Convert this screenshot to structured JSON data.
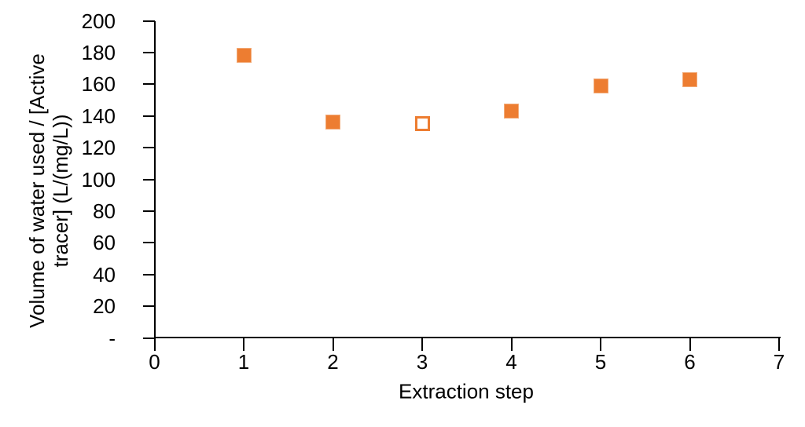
{
  "chart_data": {
    "type": "scatter",
    "title": "",
    "xlabel": "Extraction step",
    "ylabel": "Volume of water used / [Active tracer] (L/(mg/L))",
    "ylabel_lines": [
      "Volume of water used / [Active",
      "tracer] (L/(mg/L))"
    ],
    "xlim": [
      0,
      7
    ],
    "ylim": [
      0,
      200
    ],
    "grid": false,
    "legend": false,
    "axis_color": "#000000",
    "text_color": "#000000",
    "marker": {
      "shape": "square",
      "size": 19,
      "color": "#ED7D31",
      "open_fill": "#FFFFFF"
    },
    "x_ticks": [
      {
        "value": 0,
        "label": "0"
      },
      {
        "value": 1,
        "label": "1"
      },
      {
        "value": 2,
        "label": "2"
      },
      {
        "value": 3,
        "label": "3"
      },
      {
        "value": 4,
        "label": "4"
      },
      {
        "value": 5,
        "label": "5"
      },
      {
        "value": 6,
        "label": "6"
      },
      {
        "value": 7,
        "label": "7"
      }
    ],
    "y_ticks": [
      {
        "value": 0,
        "label": "-"
      },
      {
        "value": 20,
        "label": "20"
      },
      {
        "value": 40,
        "label": "40"
      },
      {
        "value": 60,
        "label": "60"
      },
      {
        "value": 80,
        "label": "80"
      },
      {
        "value": 100,
        "label": "100"
      },
      {
        "value": 120,
        "label": "120"
      },
      {
        "value": 140,
        "label": "140"
      },
      {
        "value": 160,
        "label": "160"
      },
      {
        "value": 180,
        "label": "180"
      },
      {
        "value": 200,
        "label": "200"
      }
    ],
    "points": [
      {
        "x": 1,
        "y": 178,
        "style": "filled"
      },
      {
        "x": 2,
        "y": 136,
        "style": "filled"
      },
      {
        "x": 3,
        "y": 135,
        "style": "open"
      },
      {
        "x": 4,
        "y": 143,
        "style": "filled"
      },
      {
        "x": 5,
        "y": 159,
        "style": "filled"
      },
      {
        "x": 6,
        "y": 163,
        "style": "filled"
      }
    ]
  }
}
